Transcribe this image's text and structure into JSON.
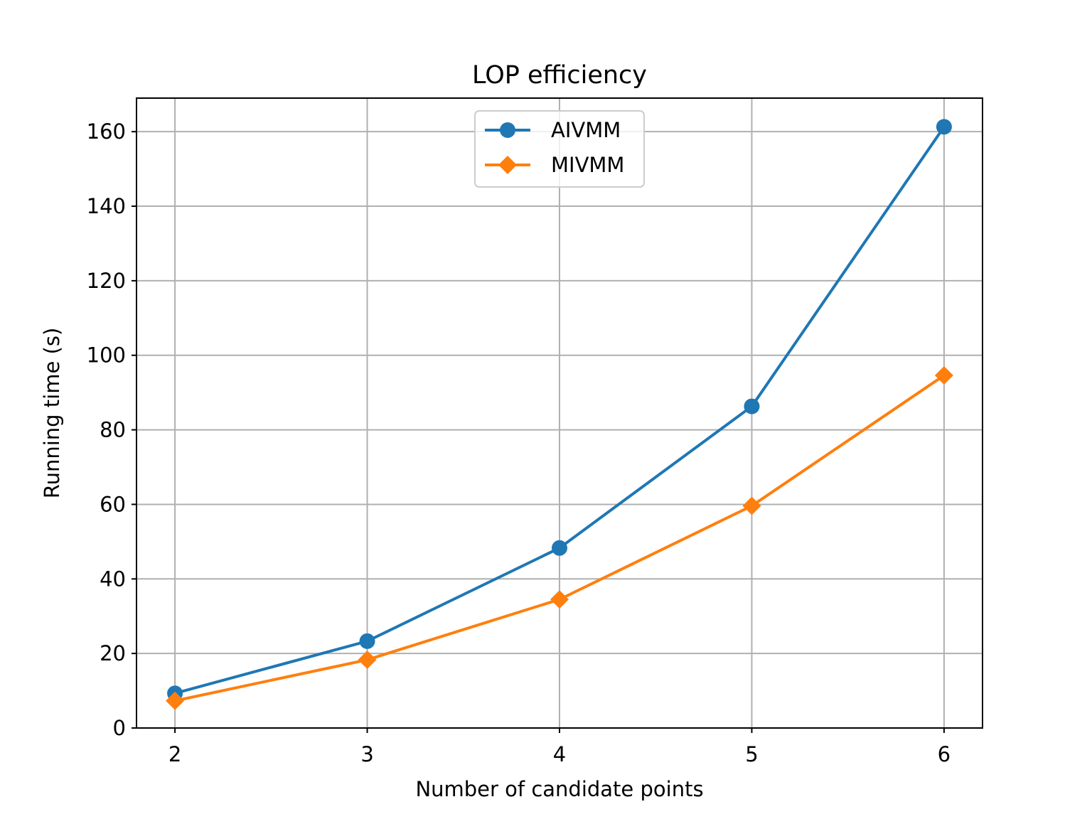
{
  "chart_data": {
    "type": "line",
    "title": "LOP efficiency",
    "xlabel": "Number of candidate points",
    "ylabel": "Running time (s)",
    "x": [
      2,
      3,
      4,
      5,
      6
    ],
    "xlim": [
      1.8,
      6.2
    ],
    "ylim": [
      0,
      169
    ],
    "xticks": [
      2,
      3,
      4,
      5,
      6
    ],
    "yticks": [
      0,
      20,
      40,
      60,
      80,
      100,
      120,
      140,
      160
    ],
    "grid": true,
    "legend_position": "upper-center",
    "series": [
      {
        "name": "AIVMM",
        "values": [
          9.3,
          23.3,
          48.3,
          86.3,
          161.3
        ],
        "color": "#1f77b4",
        "marker": "circle"
      },
      {
        "name": "MIVMM",
        "values": [
          7.3,
          18.3,
          34.5,
          59.6,
          94.6
        ],
        "color": "#ff7f0e",
        "marker": "diamond"
      }
    ]
  }
}
